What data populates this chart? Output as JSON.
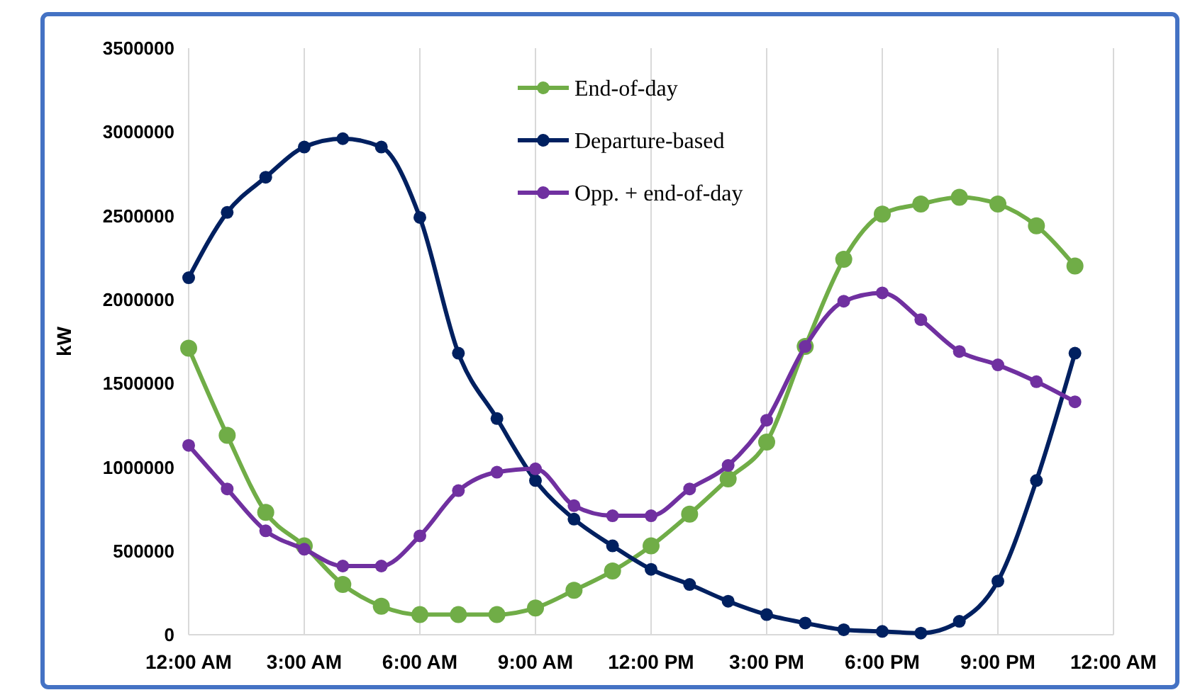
{
  "chart_data": {
    "type": "line",
    "ylabel": "kW",
    "x": [
      0,
      1,
      2,
      3,
      4,
      5,
      6,
      7,
      8,
      9,
      10,
      11,
      12,
      13,
      14,
      15,
      16,
      17,
      18,
      19,
      20,
      21,
      22,
      23
    ],
    "xlim": [
      0,
      24
    ],
    "xticks": [
      {
        "value": 0,
        "label": "12:00 AM"
      },
      {
        "value": 3,
        "label": "3:00 AM"
      },
      {
        "value": 6,
        "label": "6:00 AM"
      },
      {
        "value": 9,
        "label": "9:00 AM"
      },
      {
        "value": 12,
        "label": "12:00 PM"
      },
      {
        "value": 15,
        "label": "3:00 PM"
      },
      {
        "value": 18,
        "label": "6:00 PM"
      },
      {
        "value": 21,
        "label": "9:00 PM"
      },
      {
        "value": 24,
        "label": "12:00 AM"
      }
    ],
    "ylim": [
      0,
      3500000
    ],
    "yticks": [
      0,
      500000,
      1000000,
      1500000,
      2000000,
      2500000,
      3000000,
      3500000
    ],
    "grid": "x",
    "legend": "top",
    "marker": "circle",
    "line_style": "solid",
    "series": [
      {
        "name": "End-of-day",
        "color": "#70ad47",
        "values": [
          1710000,
          1190000,
          730000,
          530000,
          300000,
          170000,
          120000,
          120000,
          120000,
          160000,
          265000,
          380000,
          530000,
          720000,
          930000,
          1150000,
          1720000,
          2240000,
          2510000,
          2570000,
          2610000,
          2570000,
          2440000,
          2200000
        ]
      },
      {
        "name": "Departure-based",
        "color": "#002060",
        "values": [
          2130000,
          2520000,
          2730000,
          2910000,
          2960000,
          2910000,
          2490000,
          1680000,
          1290000,
          920000,
          690000,
          530000,
          390000,
          300000,
          200000,
          120000,
          70000,
          30000,
          20000,
          10000,
          80000,
          320000,
          920000,
          1680000
        ]
      },
      {
        "name": "Opp. + end-of-day",
        "color": "#7030a0",
        "values": [
          1130000,
          870000,
          620000,
          510000,
          410000,
          410000,
          590000,
          860000,
          970000,
          990000,
          770000,
          710000,
          710000,
          870000,
          1010000,
          1280000,
          1720000,
          1990000,
          2040000,
          1880000,
          1690000,
          1610000,
          1510000,
          1390000
        ]
      }
    ]
  }
}
